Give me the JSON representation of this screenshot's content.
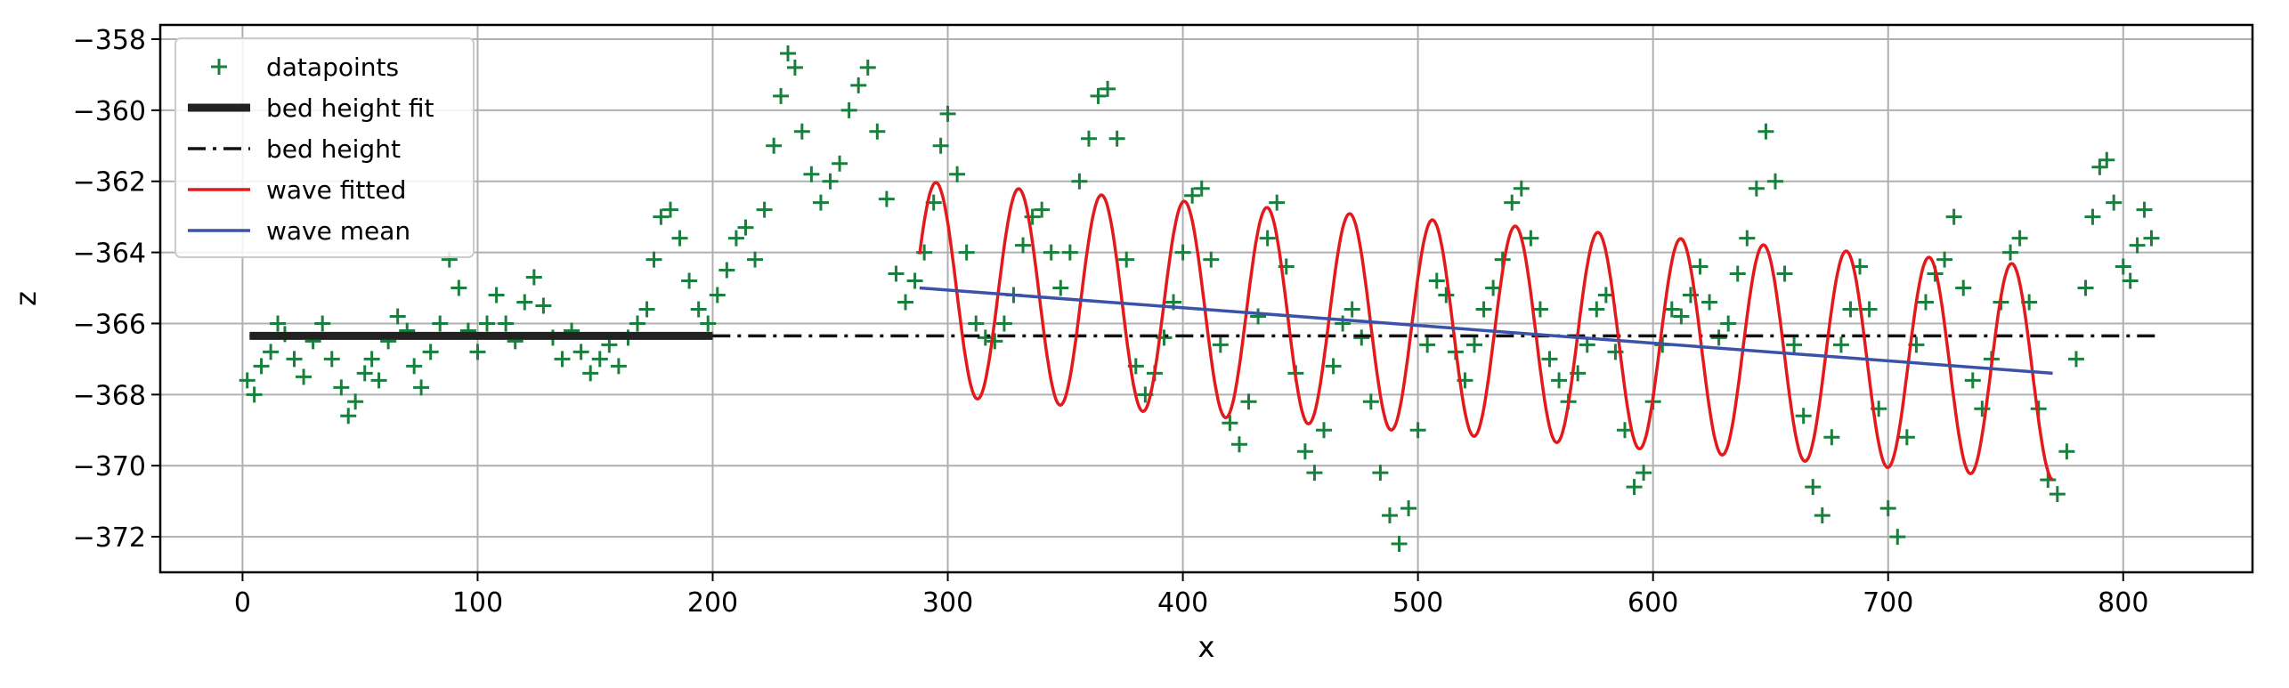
{
  "chart_data": {
    "type": "line",
    "xlabel": "x",
    "ylabel": "z",
    "xlim": [
      -35,
      855
    ],
    "ylim": [
      -373,
      -357.6
    ],
    "xticks": [
      0,
      100,
      200,
      300,
      400,
      500,
      600,
      700,
      800
    ],
    "yticks": [
      -372,
      -370,
      -368,
      -366,
      -364,
      -362,
      -360,
      -358
    ],
    "grid": true,
    "legend_position": "top-left",
    "colors": {
      "datapoints": "#1a7f3c",
      "bed_height_fit": "#222222",
      "bed_height": "#111111",
      "wave_fitted": "#e31a1c",
      "wave_mean": "#3a52a8"
    },
    "series": [
      {
        "name": "datapoints",
        "kind": "scatter",
        "marker": "plus",
        "points": [
          [
            2,
            -367.6
          ],
          [
            5,
            -368.0
          ],
          [
            8,
            -367.2
          ],
          [
            12,
            -366.8
          ],
          [
            15,
            -366.0
          ],
          [
            18,
            -366.3
          ],
          [
            22,
            -367.0
          ],
          [
            26,
            -367.5
          ],
          [
            30,
            -366.5
          ],
          [
            34,
            -366.0
          ],
          [
            38,
            -367.0
          ],
          [
            42,
            -367.8
          ],
          [
            45,
            -368.6
          ],
          [
            48,
            -368.2
          ],
          [
            52,
            -367.4
          ],
          [
            55,
            -367.0
          ],
          [
            58,
            -367.6
          ],
          [
            62,
            -366.5
          ],
          [
            66,
            -365.8
          ],
          [
            70,
            -366.2
          ],
          [
            73,
            -367.2
          ],
          [
            76,
            -367.8
          ],
          [
            80,
            -366.8
          ],
          [
            84,
            -366.0
          ],
          [
            88,
            -364.2
          ],
          [
            92,
            -365.0
          ],
          [
            96,
            -366.2
          ],
          [
            100,
            -366.8
          ],
          [
            104,
            -366.0
          ],
          [
            108,
            -365.2
          ],
          [
            112,
            -366.0
          ],
          [
            116,
            -366.5
          ],
          [
            120,
            -365.4
          ],
          [
            124,
            -364.7
          ],
          [
            128,
            -365.5
          ],
          [
            132,
            -366.4
          ],
          [
            136,
            -367.0
          ],
          [
            140,
            -366.2
          ],
          [
            144,
            -366.8
          ],
          [
            148,
            -367.4
          ],
          [
            152,
            -367.0
          ],
          [
            156,
            -366.6
          ],
          [
            160,
            -367.2
          ],
          [
            164,
            -366.4
          ],
          [
            168,
            -366.0
          ],
          [
            172,
            -365.6
          ],
          [
            175,
            -364.2
          ],
          [
            178,
            -363.0
          ],
          [
            182,
            -362.8
          ],
          [
            186,
            -363.6
          ],
          [
            190,
            -364.8
          ],
          [
            194,
            -365.6
          ],
          [
            198,
            -366.0
          ],
          [
            202,
            -365.2
          ],
          [
            206,
            -364.5
          ],
          [
            210,
            -363.6
          ],
          [
            214,
            -363.3
          ],
          [
            218,
            -364.2
          ],
          [
            222,
            -362.8
          ],
          [
            226,
            -361.0
          ],
          [
            229,
            -359.6
          ],
          [
            232,
            -358.4
          ],
          [
            235,
            -358.8
          ],
          [
            238,
            -360.6
          ],
          [
            242,
            -361.8
          ],
          [
            246,
            -362.6
          ],
          [
            250,
            -362.0
          ],
          [
            254,
            -361.5
          ],
          [
            258,
            -360.0
          ],
          [
            262,
            -359.3
          ],
          [
            266,
            -358.8
          ],
          [
            270,
            -360.6
          ],
          [
            274,
            -362.5
          ],
          [
            278,
            -364.6
          ],
          [
            282,
            -365.4
          ],
          [
            286,
            -364.8
          ],
          [
            290,
            -364.0
          ],
          [
            294,
            -362.6
          ],
          [
            297,
            -361.0
          ],
          [
            300,
            -360.1
          ],
          [
            304,
            -361.8
          ],
          [
            308,
            -364.0
          ],
          [
            312,
            -366.0
          ],
          [
            316,
            -366.4
          ],
          [
            320,
            -366.5
          ],
          [
            324,
            -366.0
          ],
          [
            328,
            -365.2
          ],
          [
            332,
            -363.8
          ],
          [
            336,
            -363.0
          ],
          [
            340,
            -362.8
          ],
          [
            344,
            -364.0
          ],
          [
            348,
            -365.0
          ],
          [
            352,
            -364.0
          ],
          [
            356,
            -362.0
          ],
          [
            360,
            -360.8
          ],
          [
            364,
            -359.6
          ],
          [
            368,
            -359.4
          ],
          [
            372,
            -360.8
          ],
          [
            376,
            -364.2
          ],
          [
            380,
            -367.2
          ],
          [
            384,
            -368.0
          ],
          [
            388,
            -367.4
          ],
          [
            392,
            -366.4
          ],
          [
            396,
            -365.4
          ],
          [
            400,
            -364.0
          ],
          [
            404,
            -362.4
          ],
          [
            408,
            -362.2
          ],
          [
            412,
            -364.2
          ],
          [
            416,
            -366.6
          ],
          [
            420,
            -368.8
          ],
          [
            424,
            -369.4
          ],
          [
            428,
            -368.2
          ],
          [
            432,
            -365.8
          ],
          [
            436,
            -363.6
          ],
          [
            440,
            -362.6
          ],
          [
            444,
            -364.4
          ],
          [
            448,
            -367.4
          ],
          [
            452,
            -369.6
          ],
          [
            456,
            -370.2
          ],
          [
            460,
            -369.0
          ],
          [
            464,
            -367.2
          ],
          [
            468,
            -366.0
          ],
          [
            472,
            -365.6
          ],
          [
            476,
            -366.4
          ],
          [
            480,
            -368.2
          ],
          [
            484,
            -370.2
          ],
          [
            488,
            -371.4
          ],
          [
            492,
            -372.2
          ],
          [
            496,
            -371.2
          ],
          [
            500,
            -369.0
          ],
          [
            504,
            -366.6
          ],
          [
            508,
            -364.8
          ],
          [
            512,
            -365.2
          ],
          [
            516,
            -366.8
          ],
          [
            520,
            -367.6
          ],
          [
            524,
            -366.6
          ],
          [
            528,
            -365.6
          ],
          [
            532,
            -365.0
          ],
          [
            536,
            -364.2
          ],
          [
            540,
            -362.6
          ],
          [
            544,
            -362.2
          ],
          [
            548,
            -363.6
          ],
          [
            552,
            -365.6
          ],
          [
            556,
            -367.0
          ],
          [
            560,
            -367.6
          ],
          [
            564,
            -368.2
          ],
          [
            568,
            -367.4
          ],
          [
            572,
            -366.6
          ],
          [
            576,
            -365.6
          ],
          [
            580,
            -365.2
          ],
          [
            584,
            -366.8
          ],
          [
            588,
            -369.0
          ],
          [
            592,
            -370.6
          ],
          [
            596,
            -370.2
          ],
          [
            600,
            -368.2
          ],
          [
            604,
            -366.6
          ],
          [
            608,
            -365.6
          ],
          [
            612,
            -365.8
          ],
          [
            616,
            -365.2
          ],
          [
            620,
            -364.4
          ],
          [
            624,
            -365.4
          ],
          [
            628,
            -366.4
          ],
          [
            632,
            -366.0
          ],
          [
            636,
            -364.6
          ],
          [
            640,
            -363.6
          ],
          [
            644,
            -362.2
          ],
          [
            648,
            -360.6
          ],
          [
            652,
            -362.0
          ],
          [
            656,
            -364.6
          ],
          [
            660,
            -366.6
          ],
          [
            664,
            -368.6
          ],
          [
            668,
            -370.6
          ],
          [
            672,
            -371.4
          ],
          [
            676,
            -369.2
          ],
          [
            680,
            -366.6
          ],
          [
            684,
            -365.6
          ],
          [
            688,
            -364.4
          ],
          [
            692,
            -365.6
          ],
          [
            696,
            -368.4
          ],
          [
            700,
            -371.2
          ],
          [
            704,
            -372.0
          ],
          [
            708,
            -369.2
          ],
          [
            712,
            -366.6
          ],
          [
            716,
            -365.4
          ],
          [
            720,
            -364.6
          ],
          [
            724,
            -364.2
          ],
          [
            728,
            -363.0
          ],
          [
            732,
            -365.0
          ],
          [
            736,
            -367.6
          ],
          [
            740,
            -368.4
          ],
          [
            744,
            -367.0
          ],
          [
            748,
            -365.4
          ],
          [
            752,
            -364.0
          ],
          [
            756,
            -363.6
          ],
          [
            760,
            -365.4
          ],
          [
            764,
            -368.4
          ],
          [
            768,
            -370.4
          ],
          [
            772,
            -370.8
          ],
          [
            776,
            -369.6
          ],
          [
            780,
            -367.0
          ],
          [
            784,
            -365.0
          ],
          [
            787,
            -363.0
          ],
          [
            790,
            -361.6
          ],
          [
            793,
            -361.4
          ],
          [
            796,
            -362.6
          ],
          [
            800,
            -364.4
          ],
          [
            803,
            -364.8
          ],
          [
            806,
            -363.8
          ],
          [
            809,
            -362.8
          ],
          [
            812,
            -363.6
          ]
        ]
      },
      {
        "name": "bed height fit",
        "kind": "line",
        "x": [
          3,
          200
        ],
        "y": [
          -366.35,
          -366.35
        ]
      },
      {
        "name": "bed height",
        "kind": "dashdot",
        "x": [
          3,
          815
        ],
        "y": [
          -366.35,
          -366.35
        ]
      },
      {
        "name": "wave fitted",
        "kind": "sine",
        "x_start": 288,
        "x_end": 770,
        "period": 35.2,
        "peak_x": 295,
        "amplitude_start": 3.0,
        "amplitude_end": 3.0,
        "mean_start": -365.0,
        "mean_end": -367.4
      },
      {
        "name": "wave mean",
        "kind": "line",
        "x": [
          288,
          770
        ],
        "y": [
          -365.0,
          -367.4
        ]
      }
    ],
    "legend": [
      {
        "key": "datapoints",
        "label": "datapoints"
      },
      {
        "key": "bed_height_fit",
        "label": "bed height fit"
      },
      {
        "key": "bed_height",
        "label": "bed height"
      },
      {
        "key": "wave_fitted",
        "label": "wave fitted"
      },
      {
        "key": "wave_mean",
        "label": "wave mean"
      }
    ]
  }
}
